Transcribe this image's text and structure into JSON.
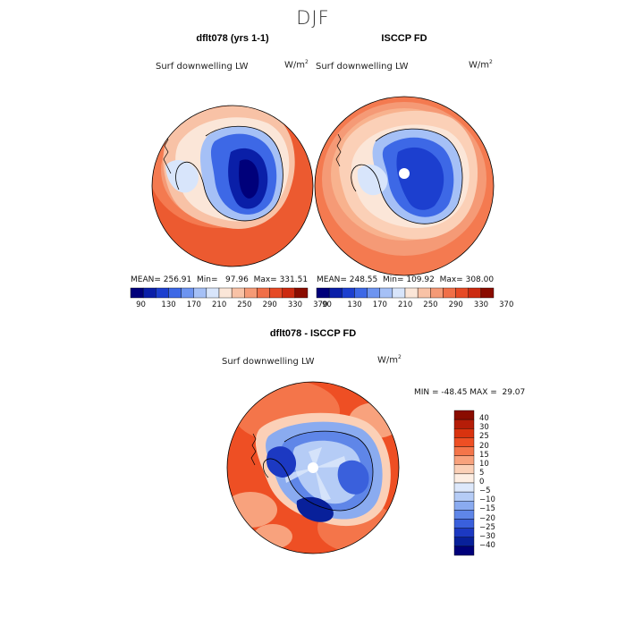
{
  "season": "DJF",
  "panels": [
    {
      "id": "model",
      "title": "dflt078 (yrs 1-1)",
      "variable": "Surf downwelling LW",
      "units": "W/m",
      "units_exp": "2",
      "stats": {
        "mean": "MEAN= 256.91",
        "min": "Min=   97.96",
        "max": "Max= 331.51"
      },
      "colorbar_ticks": [
        "90",
        "130",
        "170",
        "210",
        "250",
        "290",
        "330",
        "370"
      ]
    },
    {
      "id": "obs",
      "title": "ISCCP FD",
      "variable": "Surf downwelling LW",
      "units": "W/m",
      "units_exp": "2",
      "stats": {
        "mean": "MEAN= 248.55",
        "min": "Min= 109.92",
        "max": "Max= 308.00"
      },
      "colorbar_ticks": [
        "90",
        "130",
        "170",
        "210",
        "250",
        "290",
        "330",
        "370"
      ]
    },
    {
      "id": "diff",
      "title": "dflt078 - ISCCP FD",
      "variable": "Surf downwelling LW",
      "units": "W/m",
      "units_exp": "2",
      "stats": {
        "minmax": "MIN = -48.45 MAX =  29.07"
      },
      "colorbar_ticks": [
        "40",
        "30",
        "25",
        "20",
        "15",
        "10",
        "5",
        "0",
        "−5",
        "−10",
        "−15",
        "−20",
        "−25",
        "−30",
        "−40"
      ]
    }
  ],
  "colors": {
    "abs_scale": [
      "#00007a",
      "#0a1fa8",
      "#1c3fcf",
      "#3d68e6",
      "#6d94f0",
      "#a5c0f6",
      "#d8e5fb",
      "#fbe6d8",
      "#f8c2a6",
      "#f59a76",
      "#f06f48",
      "#e64a25",
      "#cc2a10",
      "#8a0c00"
    ],
    "diff_scale": [
      "#8a0c00",
      "#b51d08",
      "#d9330f",
      "#ee4f24",
      "#f4754a",
      "#f8a27d",
      "#fbd0b7",
      "#fdeee3",
      "#dde8fb",
      "#b5ccf6",
      "#8aabf0",
      "#5f86e8",
      "#3a60dc",
      "#1c39c2",
      "#08209a",
      "#00007a"
    ]
  },
  "chart_data": [
    {
      "type": "heatmap",
      "title": "dflt078 (yrs 1-1)",
      "subtitle": "Surf downwelling LW",
      "units": "W/m2",
      "projection": "south polar stereographic",
      "mean": 256.91,
      "min": 97.96,
      "max": 331.51,
      "colorbar_levels": [
        90,
        110,
        130,
        150,
        170,
        190,
        210,
        230,
        250,
        270,
        290,
        310,
        330,
        350,
        370
      ],
      "colorbar_tick_labels": [
        90,
        130,
        170,
        210,
        250,
        290,
        330,
        370
      ]
    },
    {
      "type": "heatmap",
      "title": "ISCCP FD",
      "subtitle": "Surf downwelling LW",
      "units": "W/m2",
      "projection": "south polar stereographic",
      "mean": 248.55,
      "min": 109.92,
      "max": 308.0,
      "colorbar_levels": [
        90,
        110,
        130,
        150,
        170,
        190,
        210,
        230,
        250,
        270,
        290,
        310,
        330,
        350,
        370
      ],
      "colorbar_tick_labels": [
        90,
        130,
        170,
        210,
        250,
        290,
        330,
        370
      ]
    },
    {
      "type": "heatmap",
      "title": "dflt078 - ISCCP FD",
      "subtitle": "Surf downwelling LW",
      "units": "W/m2",
      "projection": "south polar stereographic",
      "min": -48.45,
      "max": 29.07,
      "colorbar_levels": [
        40,
        30,
        25,
        20,
        15,
        10,
        5,
        0,
        -5,
        -10,
        -15,
        -20,
        -25,
        -30,
        -40
      ]
    }
  ]
}
